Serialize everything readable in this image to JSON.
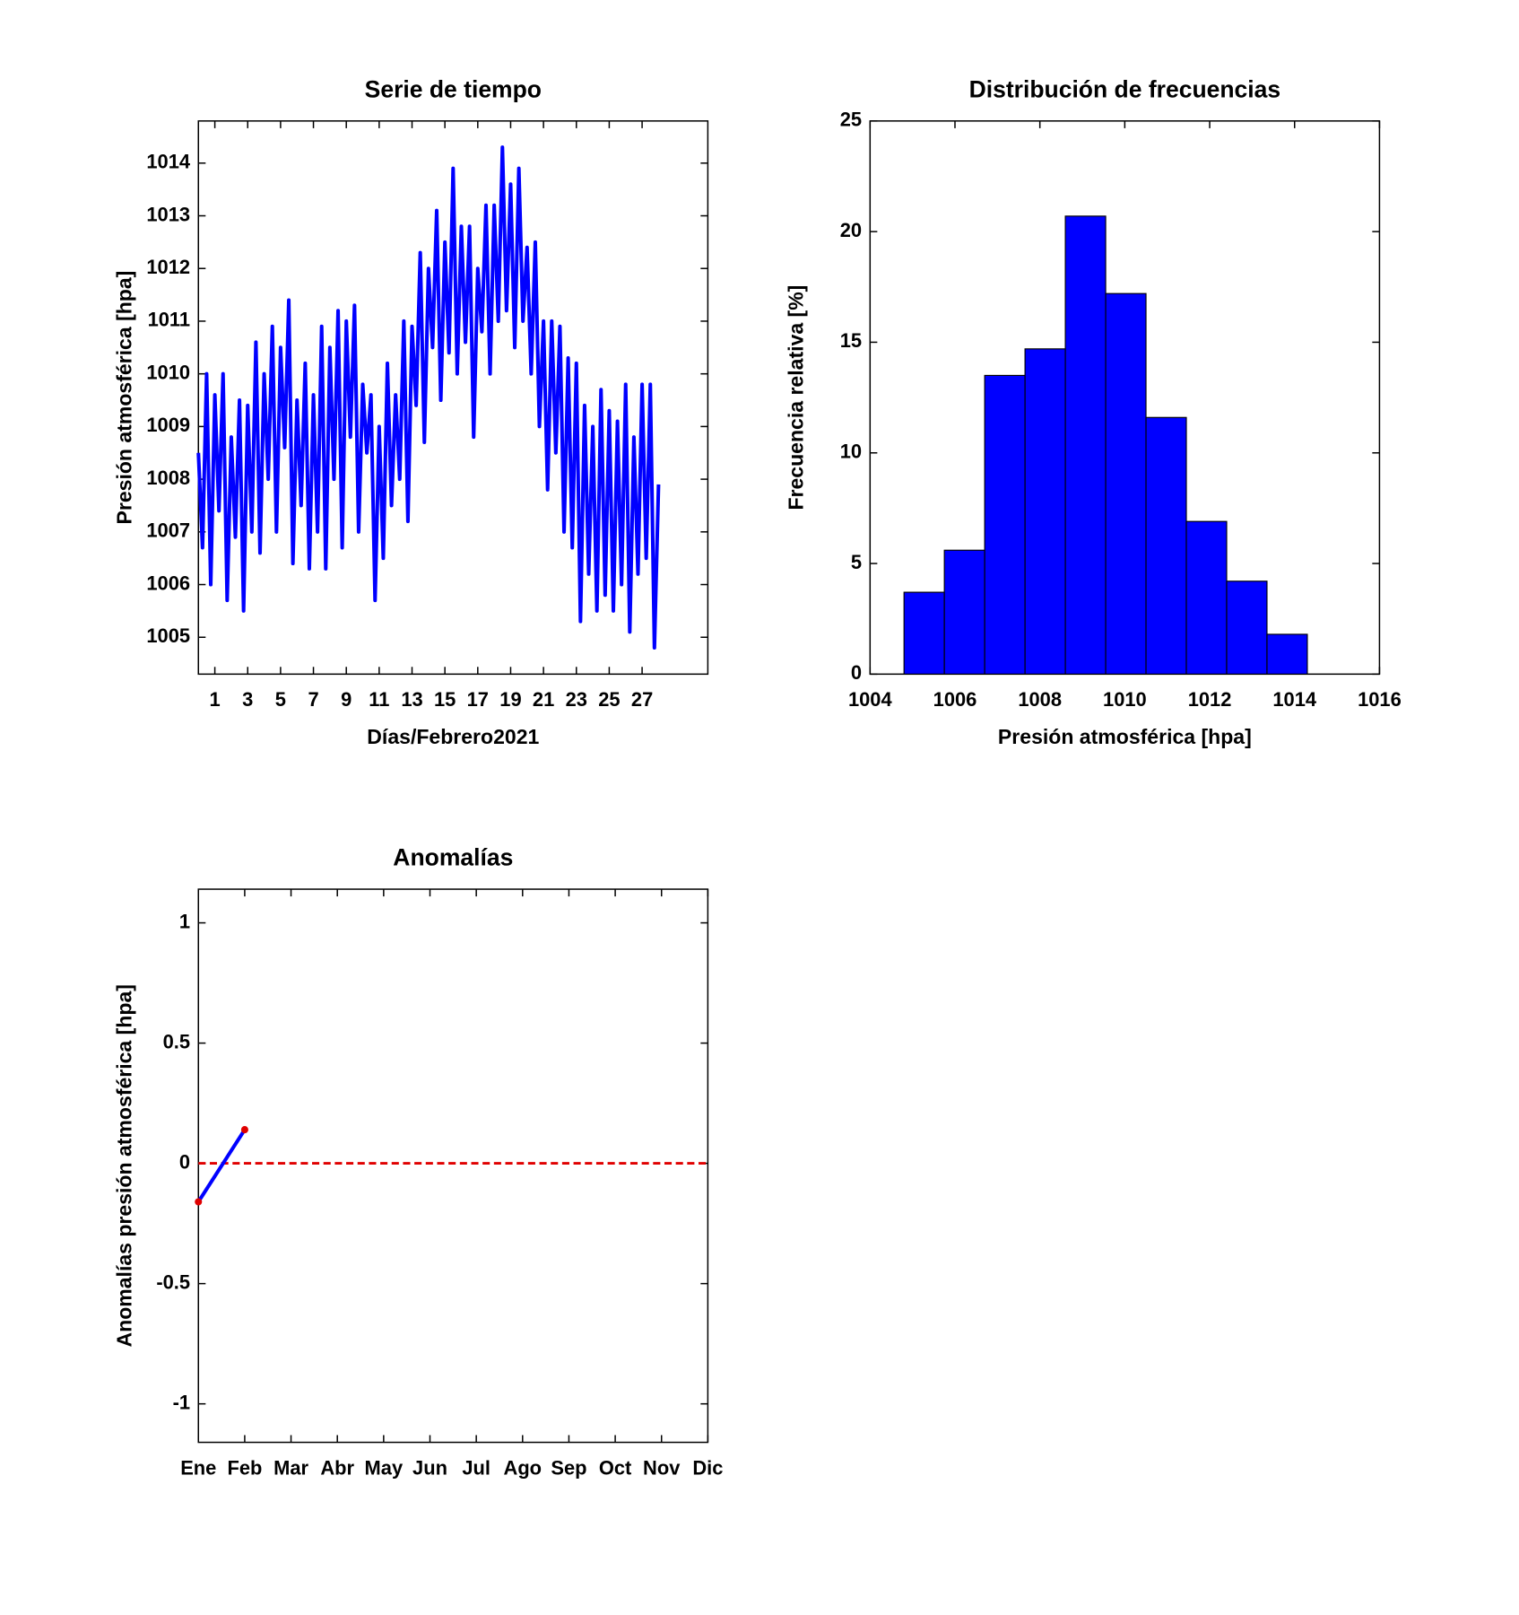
{
  "chart_data": [
    {
      "type": "line",
      "title": "Serie de tiempo",
      "xlabel": "Días/Febrero2021",
      "ylabel": "Presión atmosférica [hpa]",
      "xlim": [
        0,
        31
      ],
      "xticks": [
        1,
        3,
        5,
        7,
        9,
        11,
        13,
        15,
        17,
        19,
        21,
        23,
        25,
        27
      ],
      "ylim": [
        1004.3,
        1014.8
      ],
      "yticks": [
        1005,
        1006,
        1007,
        1008,
        1009,
        1010,
        1011,
        1012,
        1013,
        1014
      ],
      "x": [
        0,
        0.25,
        0.5,
        0.75,
        1,
        1.25,
        1.5,
        1.75,
        2,
        2.25,
        2.5,
        2.75,
        3,
        3.25,
        3.5,
        3.75,
        4,
        4.25,
        4.5,
        4.75,
        5,
        5.25,
        5.5,
        5.75,
        6,
        6.25,
        6.5,
        6.75,
        7,
        7.25,
        7.5,
        7.75,
        8,
        8.25,
        8.5,
        8.75,
        9,
        9.25,
        9.5,
        9.75,
        10,
        10.25,
        10.5,
        10.75,
        11,
        11.25,
        11.5,
        11.75,
        12,
        12.25,
        12.5,
        12.75,
        13,
        13.25,
        13.5,
        13.75,
        14,
        14.25,
        14.5,
        14.75,
        15,
        15.25,
        15.5,
        15.75,
        16,
        16.25,
        16.5,
        16.75,
        17,
        17.25,
        17.5,
        17.75,
        18,
        18.25,
        18.5,
        18.75,
        19,
        19.25,
        19.5,
        19.75,
        20,
        20.25,
        20.5,
        20.75,
        21,
        21.25,
        21.5,
        21.75,
        22,
        22.25,
        22.5,
        22.75,
        23,
        23.25,
        23.5,
        23.75,
        24,
        24.25,
        24.5,
        24.75,
        25,
        25.25,
        25.5,
        25.75,
        26,
        26.25,
        26.5,
        26.75,
        27,
        27.25,
        27.5,
        27.75,
        28
      ],
      "series": [
        {
          "color": "#0000ff",
          "values": [
            1008.5,
            1006.7,
            1010.0,
            1006.0,
            1009.6,
            1007.4,
            1010.0,
            1005.7,
            1008.8,
            1006.9,
            1009.5,
            1005.5,
            1009.4,
            1007.0,
            1010.6,
            1006.6,
            1010.0,
            1008.0,
            1010.9,
            1007.0,
            1010.5,
            1008.6,
            1011.4,
            1006.4,
            1009.5,
            1007.5,
            1010.2,
            1006.3,
            1009.6,
            1007.0,
            1010.9,
            1006.3,
            1010.5,
            1008.0,
            1011.2,
            1006.7,
            1011.0,
            1008.8,
            1011.3,
            1007.0,
            1009.8,
            1008.5,
            1009.6,
            1005.7,
            1009.0,
            1006.5,
            1010.2,
            1007.5,
            1009.6,
            1008.0,
            1011.0,
            1007.2,
            1010.9,
            1009.4,
            1012.3,
            1008.7,
            1012.0,
            1010.5,
            1013.1,
            1009.5,
            1012.5,
            1010.4,
            1013.9,
            1010.0,
            1012.8,
            1010.6,
            1012.8,
            1008.8,
            1012.0,
            1010.8,
            1013.2,
            1010.0,
            1013.2,
            1011.0,
            1014.3,
            1011.2,
            1013.6,
            1010.5,
            1013.9,
            1011.0,
            1012.4,
            1010.0,
            1012.5,
            1009.0,
            1011.0,
            1007.8,
            1011.0,
            1008.5,
            1010.9,
            1007.0,
            1010.3,
            1006.7,
            1010.2,
            1005.3,
            1009.4,
            1006.2,
            1009.0,
            1005.5,
            1009.7,
            1005.8,
            1009.3,
            1005.5,
            1009.1,
            1006.0,
            1009.8,
            1005.1,
            1008.8,
            1006.2,
            1009.8,
            1006.5,
            1009.8,
            1004.8,
            1007.9
          ]
        }
      ]
    },
    {
      "type": "histogram",
      "title": "Distribución de frecuencias",
      "xlabel": "Presión atmosférica [hpa]",
      "ylabel": "Frecuencia relativa [%]",
      "xlim": [
        1004,
        1016
      ],
      "xticks": [
        1004,
        1006,
        1008,
        1010,
        1012,
        1014,
        1016
      ],
      "ylim": [
        0,
        25
      ],
      "yticks": [
        0,
        5,
        10,
        15,
        20,
        25
      ],
      "color": "#0000ff",
      "bins": [
        1004.8,
        1005.75,
        1006.7,
        1007.65,
        1008.6,
        1009.55,
        1010.5,
        1011.45,
        1012.4,
        1013.35,
        1014.3
      ],
      "values": [
        3.7,
        5.6,
        13.5,
        14.7,
        20.7,
        17.2,
        11.6,
        6.9,
        4.2,
        1.8
      ]
    },
    {
      "type": "line",
      "title": "Anomalías",
      "ylabel": "Anomalías presión atmosférica [hpa]",
      "categories": [
        "Ene",
        "Feb",
        "Mar",
        "Abr",
        "May",
        "Jun",
        "Jul",
        "Ago",
        "Sep",
        "Oct",
        "Nov",
        "Dic"
      ],
      "ylim": [
        -1.16,
        1.14
      ],
      "yticks": [
        -1,
        -0.5,
        0,
        0.5,
        1
      ],
      "hline": {
        "value": 0,
        "color": "#e00000",
        "style": "dashed"
      },
      "series": [
        {
          "color": "#0000ff",
          "marker_color": "#e00000",
          "values": [
            -0.16,
            0.14,
            null,
            null,
            null,
            null,
            null,
            null,
            null,
            null,
            null,
            null
          ]
        }
      ]
    }
  ]
}
